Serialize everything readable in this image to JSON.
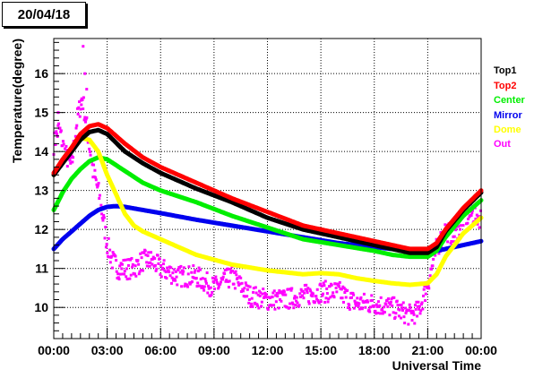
{
  "header": {
    "date_label": "20/04/18"
  },
  "chart_data": {
    "type": "scatter",
    "title": "",
    "xlabel": "Universal Time",
    "ylabel": "Temperature(degree)",
    "xlim": [
      0,
      24
    ],
    "ylim": [
      9.2,
      16.9
    ],
    "grid": true,
    "legend_position": "right",
    "x_ticks": [
      {
        "x": 0,
        "label": "00:00"
      },
      {
        "x": 3,
        "label": "03:00"
      },
      {
        "x": 6,
        "label": "06:00"
      },
      {
        "x": 9,
        "label": "09:00"
      },
      {
        "x": 12,
        "label": "12:00"
      },
      {
        "x": 15,
        "label": "15:00"
      },
      {
        "x": 18,
        "label": "18:00"
      },
      {
        "x": 21,
        "label": "21:00"
      },
      {
        "x": 24,
        "label": "00:00"
      }
    ],
    "y_ticks": [
      {
        "y": 10,
        "label": "10"
      },
      {
        "y": 11,
        "label": "11"
      },
      {
        "y": 12,
        "label": "12"
      },
      {
        "y": 13,
        "label": "13"
      },
      {
        "y": 14,
        "label": "14"
      },
      {
        "y": 15,
        "label": "15"
      },
      {
        "y": 16,
        "label": "16"
      }
    ],
    "series": [
      {
        "name": "Top1",
        "color": "#000000",
        "x": [
          0,
          0.5,
          1,
          1.5,
          2,
          2.5,
          3,
          4,
          5,
          6,
          8,
          10,
          12,
          14,
          16,
          18,
          19,
          20,
          21,
          21.5,
          22,
          23,
          24
        ],
        "y": [
          13.4,
          13.7,
          14.0,
          14.3,
          14.5,
          14.55,
          14.45,
          14.0,
          13.7,
          13.45,
          13.05,
          12.7,
          12.3,
          12.0,
          11.8,
          11.6,
          11.5,
          11.4,
          11.4,
          11.55,
          11.95,
          12.5,
          12.95
        ]
      },
      {
        "name": "Top2",
        "color": "#ff0000",
        "x": [
          0,
          0.5,
          1,
          1.5,
          2,
          2.5,
          3,
          4,
          5,
          6,
          8,
          10,
          12,
          14,
          16,
          18,
          19,
          20,
          21,
          21.5,
          22,
          23,
          24
        ],
        "y": [
          13.45,
          13.8,
          14.1,
          14.45,
          14.65,
          14.7,
          14.6,
          14.2,
          13.85,
          13.6,
          13.2,
          12.8,
          12.45,
          12.1,
          11.9,
          11.7,
          11.6,
          11.5,
          11.5,
          11.65,
          12.0,
          12.55,
          13.0
        ]
      },
      {
        "name": "Center",
        "color": "#00ee00",
        "x": [
          0,
          0.5,
          1,
          1.5,
          2,
          2.5,
          3,
          4,
          5,
          6,
          8,
          10,
          12,
          14,
          16,
          18,
          19,
          20,
          21,
          21.5,
          22,
          23,
          24
        ],
        "y": [
          12.5,
          12.95,
          13.3,
          13.55,
          13.75,
          13.85,
          13.8,
          13.5,
          13.2,
          13.0,
          12.7,
          12.35,
          12.05,
          11.75,
          11.6,
          11.45,
          11.35,
          11.3,
          11.3,
          11.45,
          11.8,
          12.35,
          12.75
        ]
      },
      {
        "name": "Mirror",
        "color": "#0000ee",
        "x": [
          0,
          0.5,
          1,
          1.5,
          2,
          2.5,
          3,
          3.5,
          4,
          5,
          6,
          8,
          10,
          12,
          14,
          16,
          18,
          20,
          21,
          22,
          23,
          24
        ],
        "y": [
          11.5,
          11.75,
          11.95,
          12.15,
          12.35,
          12.5,
          12.58,
          12.6,
          12.58,
          12.5,
          12.42,
          12.25,
          12.1,
          11.95,
          11.8,
          11.65,
          11.55,
          11.45,
          11.4,
          11.5,
          11.6,
          11.7
        ]
      },
      {
        "name": "Dome",
        "color": "#ffff00",
        "x": [
          0,
          0.5,
          1,
          1.5,
          2,
          2.5,
          3,
          3.5,
          4,
          4.5,
          5,
          6,
          7,
          8,
          10,
          12,
          14,
          15,
          16,
          17,
          18,
          19,
          20,
          21,
          21.5,
          22,
          23,
          24
        ],
        "y": [
          13.4,
          13.75,
          14.1,
          14.35,
          14.3,
          14.0,
          13.4,
          12.9,
          12.4,
          12.1,
          11.95,
          11.75,
          11.55,
          11.35,
          11.1,
          10.95,
          10.85,
          10.88,
          10.85,
          10.75,
          10.68,
          10.62,
          10.58,
          10.62,
          10.85,
          11.3,
          11.9,
          12.3
        ]
      },
      {
        "name": "Out",
        "color": "#ff00ff",
        "x": [
          0,
          0.3,
          0.6,
          1.0,
          1.3,
          1.6,
          1.9,
          2.2,
          2.5,
          2.8,
          3.0,
          3.3,
          3.6,
          4.0,
          4.5,
          5.0,
          5.5,
          6.0,
          7.0,
          8.0,
          9.0,
          10.0,
          11.0,
          12.0,
          13.0,
          14.0,
          15.0,
          16.0,
          17.0,
          18.0,
          19.0,
          20.0,
          20.5,
          21.0,
          21.5,
          22.0,
          22.5,
          23.0,
          23.5,
          24.0
        ],
        "y": [
          14.2,
          14.6,
          14.0,
          13.6,
          14.8,
          15.4,
          14.5,
          13.5,
          13.0,
          12.2,
          11.6,
          11.2,
          11.0,
          11.0,
          11.0,
          11.2,
          11.2,
          11.0,
          10.8,
          10.8,
          10.5,
          10.8,
          10.3,
          10.2,
          10.2,
          10.3,
          10.4,
          10.4,
          10.1,
          10.1,
          10.0,
          9.8,
          9.9,
          10.6,
          11.5,
          12.0,
          11.8,
          12.3,
          12.4,
          12.3
        ]
      }
    ],
    "out_spikes": [
      {
        "x": 1.65,
        "y": 16.7
      },
      {
        "x": 1.75,
        "y": 16.0
      },
      {
        "x": 1.85,
        "y": 15.6
      },
      {
        "x": 1.55,
        "y": 15.2
      },
      {
        "x": 0.25,
        "y": 15.0
      }
    ]
  }
}
